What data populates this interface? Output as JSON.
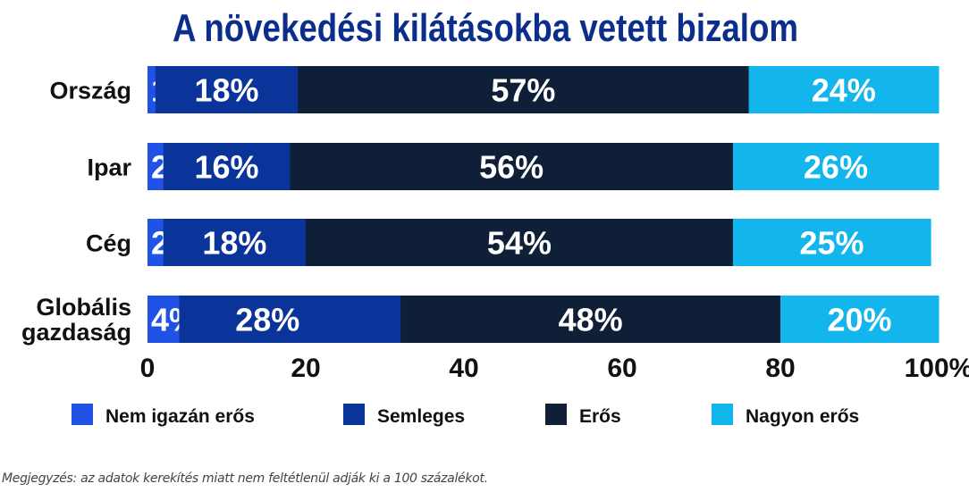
{
  "chart_data": {
    "type": "bar",
    "orientation": "horizontal",
    "stacked": true,
    "title": "A növekedési kilátásokba vetett bizalom",
    "categories": [
      "Ország",
      "Ipar",
      "Cég",
      "Globális gazdaság"
    ],
    "series": [
      {
        "name": "Nem igazán erős",
        "color": "#2152e6",
        "values": [
          1,
          2,
          2,
          4
        ]
      },
      {
        "name": "Semleges",
        "color": "#0a3499",
        "values": [
          18,
          16,
          18,
          28
        ]
      },
      {
        "name": "Erős",
        "color": "#0f1f38",
        "values": [
          57,
          56,
          54,
          48
        ]
      },
      {
        "name": "Nagyon erős",
        "color": "#12b6ec",
        "values": [
          24,
          26,
          25,
          20
        ]
      }
    ],
    "xlim": [
      0,
      100
    ],
    "xticks": [
      "0",
      "20",
      "40",
      "60",
      "80",
      "100%"
    ],
    "legend_position": "bottom",
    "title_color": "#0b2d8c"
  },
  "note": "Megjegyzés: az adatok kerekítés miatt nem feltétlenül adják ki a 100 százalékot."
}
